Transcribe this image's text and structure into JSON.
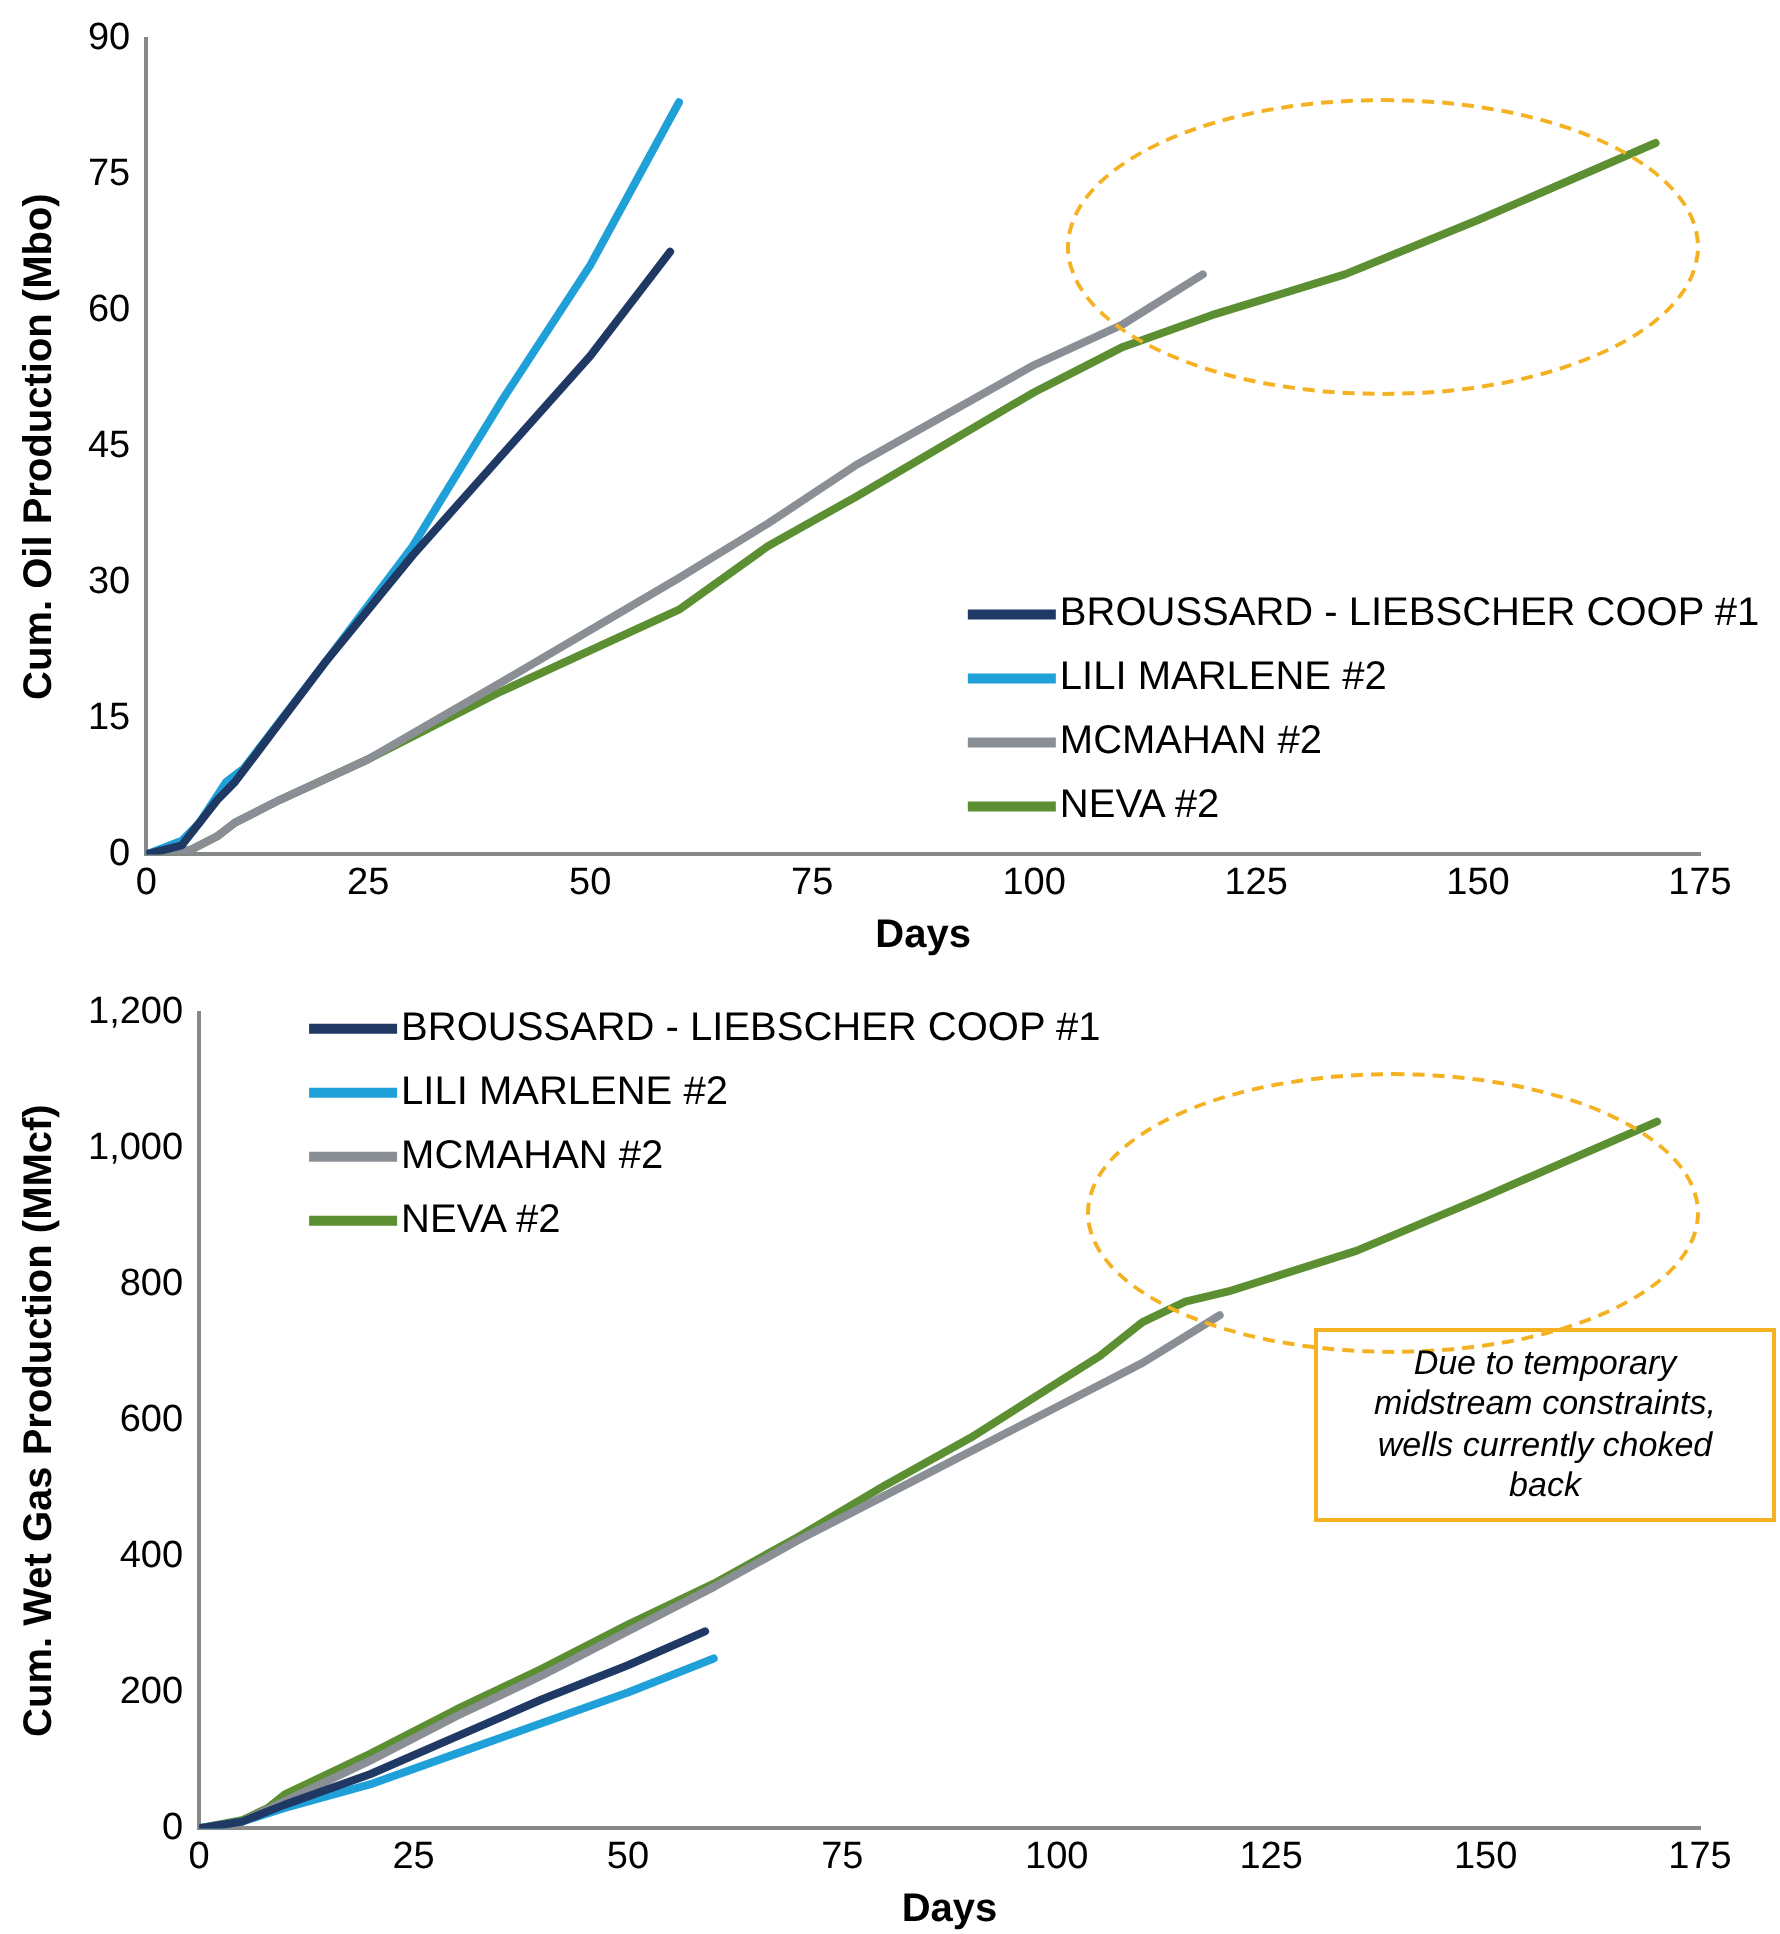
{
  "chart_data": [
    {
      "type": "line",
      "xlabel": "Days",
      "ylabel": "Cum. Oil Production (Mbo)",
      "xlim": [
        0,
        175
      ],
      "xticks": [
        0,
        25,
        50,
        75,
        100,
        125,
        150,
        175
      ],
      "ylim": [
        0,
        90
      ],
      "yticks": [
        0,
        15,
        30,
        45,
        60,
        75,
        90
      ],
      "grid": false,
      "legend": "bottom right",
      "marker": "none",
      "series": [
        {
          "name": "BROUSSARD - LIEBSCHER COOP #1",
          "color": "#1f3864",
          "x": [
            0,
            4,
            8,
            10,
            20,
            30,
            40,
            50,
            59
          ],
          "values": [
            0,
            1,
            6,
            8,
            21,
            33,
            44,
            55,
            66.5
          ]
        },
        {
          "name": "LILI MARLENE #2",
          "color": "#1fa0d8",
          "x": [
            0,
            4,
            6,
            9,
            11,
            20,
            30,
            40,
            50,
            60
          ],
          "values": [
            0,
            1.5,
            3.5,
            8,
            9.5,
            21,
            34,
            50,
            65,
            83
          ]
        },
        {
          "name": "MCMAHAN #2",
          "color": "#8a8f96",
          "x": [
            0,
            5,
            8,
            10,
            15,
            25,
            40,
            60,
            70,
            80,
            100,
            110,
            119
          ],
          "values": [
            0,
            0.5,
            2,
            3.5,
            6,
            10.5,
            19,
            30.5,
            36.5,
            43,
            54,
            58.5,
            64
          ]
        },
        {
          "name": "NEVA #2",
          "color": "#5b8f32",
          "x": [
            0,
            5,
            8,
            10,
            15,
            25,
            40,
            60,
            70,
            80,
            100,
            105,
            110,
            120,
            135,
            150,
            170
          ],
          "values": [
            0,
            0.5,
            2,
            3.5,
            6,
            10.5,
            18,
            27,
            34,
            39.5,
            51,
            53.5,
            56,
            59.5,
            64,
            70,
            78.5
          ]
        }
      ]
    },
    {
      "type": "line",
      "xlabel": "Days",
      "ylabel": "Cum. Wet Gas Production (MMcf)",
      "xlim": [
        0,
        175
      ],
      "xticks": [
        0,
        25,
        50,
        75,
        100,
        125,
        150,
        175
      ],
      "ylim": [
        0,
        1200
      ],
      "yticks": [
        0,
        200,
        400,
        600,
        800,
        {
          "value": 1000,
          "label": "1,000"
        },
        {
          "value": 1200,
          "label": "1,200"
        }
      ],
      "grid": false,
      "legend": "top left",
      "marker": "none",
      "annotations": [
        "Due to temporary midstream constraints, wells currently choked back"
      ],
      "series": [
        {
          "name": "BROUSSARD - LIEBSCHER COOP #1",
          "color": "#1f3864",
          "x": [
            0,
            5,
            10,
            20,
            30,
            40,
            50,
            59
          ],
          "values": [
            0,
            10,
            35,
            80,
            135,
            190,
            240,
            290
          ]
        },
        {
          "name": "LILI MARLENE #2",
          "color": "#1fa0d8",
          "x": [
            0,
            5,
            10,
            20,
            30,
            40,
            50,
            60
          ],
          "values": [
            0,
            10,
            30,
            65,
            110,
            155,
            200,
            250
          ]
        },
        {
          "name": "MCMAHAN #2",
          "color": "#8a8f96",
          "x": [
            0,
            5,
            10,
            20,
            30,
            40,
            50,
            60,
            70,
            80,
            100,
            110,
            119
          ],
          "values": [
            0,
            10,
            40,
            100,
            165,
            225,
            290,
            355,
            425,
            490,
            620,
            685,
            755
          ]
        },
        {
          "name": "NEVA #2",
          "color": "#5b8f32",
          "x": [
            0,
            5,
            8,
            10,
            20,
            30,
            40,
            50,
            60,
            70,
            80,
            90,
            100,
            105,
            110,
            115,
            120,
            135,
            150,
            170
          ],
          "values": [
            0,
            12,
            30,
            50,
            110,
            175,
            235,
            300,
            360,
            430,
            505,
            575,
            655,
            695,
            745,
            775,
            790,
            850,
            930,
            1040
          ]
        }
      ]
    }
  ]
}
